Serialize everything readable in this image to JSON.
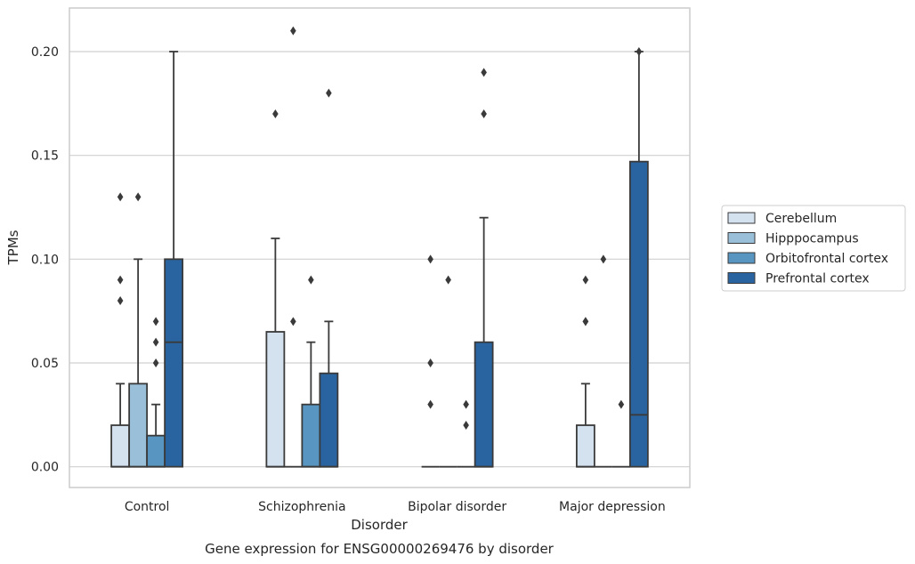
{
  "chart_data": {
    "type": "box",
    "caption": "Gene expression for ENSG00000269476 by disorder",
    "xlabel": "Disorder",
    "ylabel": "TPMs",
    "ylim": [
      -0.01,
      0.221
    ],
    "y_ticks": [
      "0.00",
      "0.05",
      "0.10",
      "0.15",
      "0.20"
    ],
    "y_tick_values": [
      0,
      0.05,
      0.1,
      0.15,
      0.2
    ],
    "grid": "horizontal",
    "legend_position": "right",
    "categories": [
      "Control",
      "Schizophrenia",
      "Bipolar disorder",
      "Major depression"
    ],
    "series": [
      {
        "name": "Cerebellum",
        "color": "#d4e2f0",
        "boxes": [
          {
            "q1": 0,
            "median": 0,
            "q3": 0.02,
            "whisker_low": 0,
            "whisker_high": 0.04,
            "outliers": [
              0.08,
              0.09,
              0.13
            ]
          },
          {
            "q1": 0,
            "median": 0,
            "q3": 0.065,
            "whisker_low": 0,
            "whisker_high": 0.11,
            "outliers": [
              0.17
            ]
          },
          {
            "q1": 0,
            "median": 0,
            "q3": 0,
            "whisker_low": 0,
            "whisker_high": 0,
            "outliers": [
              0.03,
              0.05,
              0.1
            ]
          },
          {
            "q1": 0,
            "median": 0,
            "q3": 0.02,
            "whisker_low": 0,
            "whisker_high": 0.04,
            "outliers": [
              0.07,
              0.07,
              0.09
            ]
          }
        ]
      },
      {
        "name": "Hipppocampus",
        "color": "#9abfd8",
        "boxes": [
          {
            "q1": 0,
            "median": 0,
            "q3": 0.04,
            "whisker_low": 0,
            "whisker_high": 0.1,
            "outliers": [
              0.13
            ]
          },
          {
            "q1": 0,
            "median": 0,
            "q3": 0,
            "whisker_low": 0,
            "whisker_high": 0,
            "outliers": [
              0.07,
              0.21
            ]
          },
          {
            "q1": 0,
            "median": 0,
            "q3": 0,
            "whisker_low": 0,
            "whisker_high": 0,
            "outliers": [
              0.09
            ]
          },
          {
            "q1": 0,
            "median": 0,
            "q3": 0,
            "whisker_low": 0,
            "whisker_high": 0,
            "outliers": [
              0.1
            ]
          }
        ]
      },
      {
        "name": "Orbitofrontal cortex",
        "color": "#5895c0",
        "boxes": [
          {
            "q1": 0,
            "median": 0,
            "q3": 0.015,
            "whisker_low": 0,
            "whisker_high": 0.03,
            "outliers": [
              0.05,
              0.06,
              0.07
            ]
          },
          {
            "q1": 0,
            "median": 0,
            "q3": 0.03,
            "whisker_low": 0,
            "whisker_high": 0.06,
            "outliers": [
              0.09
            ]
          },
          {
            "q1": 0,
            "median": 0,
            "q3": 0,
            "whisker_low": 0,
            "whisker_high": 0,
            "outliers": [
              0.02,
              0.03
            ]
          },
          {
            "q1": 0,
            "median": 0,
            "q3": 0,
            "whisker_low": 0,
            "whisker_high": 0,
            "outliers": [
              0.03
            ]
          }
        ]
      },
      {
        "name": "Prefrontal cortex",
        "color": "#2a64a0",
        "boxes": [
          {
            "q1": 0,
            "median": 0.06,
            "q3": 0.1,
            "whisker_low": 0,
            "whisker_high": 0.2,
            "outliers": []
          },
          {
            "q1": 0,
            "median": 0,
            "q3": 0.045,
            "whisker_low": 0,
            "whisker_high": 0.07,
            "outliers": [
              0.18
            ]
          },
          {
            "q1": 0,
            "median": 0,
            "q3": 0.06,
            "whisker_low": 0,
            "whisker_high": 0.12,
            "outliers": [
              0.17,
              0.19
            ]
          },
          {
            "q1": 0,
            "median": 0.025,
            "q3": 0.147,
            "whisker_low": 0,
            "whisker_high": 0.2,
            "outliers": [
              0.2
            ]
          }
        ]
      }
    ]
  }
}
